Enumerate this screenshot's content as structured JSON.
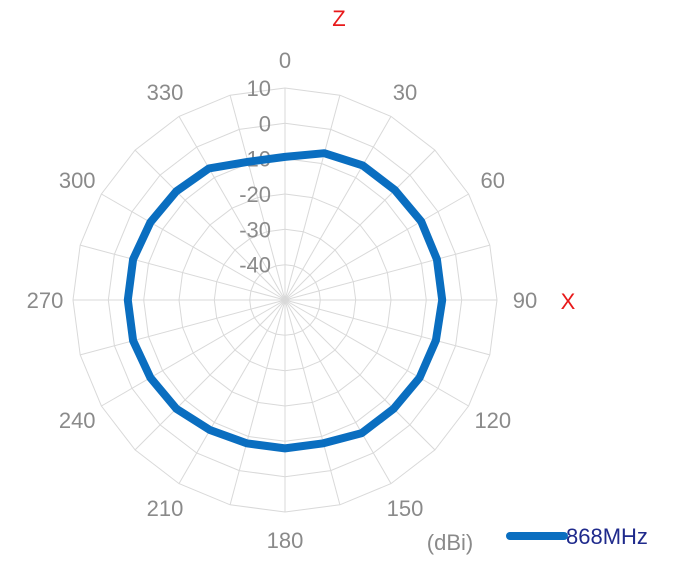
{
  "chart_data": {
    "type": "radar",
    "angle_ticks": [
      "0",
      "30",
      "60",
      "90",
      "120",
      "150",
      "180",
      "210",
      "240",
      "270",
      "300",
      "330"
    ],
    "radial_ticks": [
      "10",
      "0",
      "-10",
      "-20",
      "-30",
      "-40"
    ],
    "rlim": [
      -50,
      10
    ],
    "grid": true,
    "axis_labels": {
      "top": "Z",
      "right": "X"
    },
    "unit": "(dBi)",
    "legend_position": "bottom-right",
    "angles_deg": [
      0,
      15,
      30,
      45,
      60,
      75,
      90,
      105,
      120,
      135,
      150,
      165,
      180,
      195,
      210,
      225,
      240,
      255,
      270,
      285,
      300,
      315,
      330,
      345
    ],
    "series": [
      {
        "name": "868MHz",
        "color": "#0a6ec0",
        "values": [
          -9.5,
          -7,
          -6,
          -6,
          -5.5,
          -5.5,
          -5.5,
          -5.8,
          -6,
          -6.5,
          -6.5,
          -8,
          -8,
          -8,
          -7.5,
          -6.5,
          -6,
          -5.5,
          -5.5,
          -5.5,
          -6,
          -6.5,
          -7,
          -9.5
        ]
      }
    ]
  }
}
